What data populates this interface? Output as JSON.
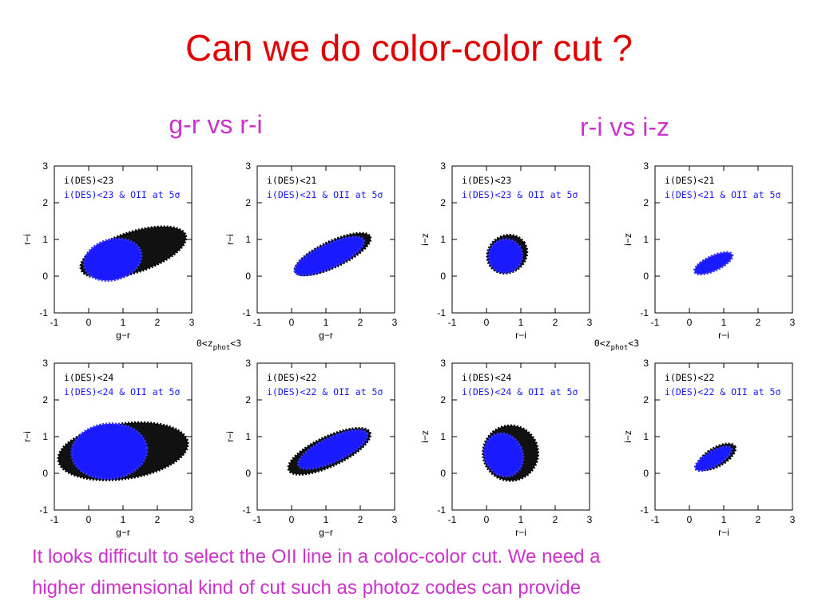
{
  "title": "Can we do color-color cut ?",
  "subtitles": [
    "g-r vs r-i",
    "r-i vs i-z"
  ],
  "redshift_labels": [
    {
      "pre": "0<z",
      "sub": "phot",
      "post": "<3"
    },
    {
      "pre": "0<z",
      "sub": "phot",
      "post": "<3"
    }
  ],
  "panels": [
    {
      "legend": [
        "i(DES)<23",
        "i(DES)<23 & OII at 5σ"
      ],
      "xlabel": "g−r",
      "ylabel": "r−i",
      "xlim": [
        -1,
        3
      ],
      "ylim": [
        -1,
        3
      ],
      "xticks": [
        -1,
        0,
        1,
        2,
        3
      ],
      "yticks": [
        -1,
        0,
        1,
        2,
        3
      ]
    },
    {
      "legend": [
        "i(DES)<21",
        "i(DES)<21 & OII at 5σ"
      ],
      "xlabel": "g−r",
      "ylabel": "r−i",
      "xlim": [
        -1,
        3
      ],
      "ylim": [
        -1,
        3
      ],
      "xticks": [
        -1,
        0,
        1,
        2,
        3
      ],
      "yticks": [
        -1,
        0,
        1,
        2,
        3
      ]
    },
    {
      "legend": [
        "i(DES)<23",
        "i(DES)<23 & OII at 5σ"
      ],
      "xlabel": "r−i",
      "ylabel": "i−z",
      "xlim": [
        -1,
        3
      ],
      "ylim": [
        -1,
        3
      ],
      "xticks": [
        -1,
        0,
        1,
        2,
        3
      ],
      "yticks": [
        -1,
        0,
        1,
        2,
        3
      ]
    },
    {
      "legend": [
        "i(DES)<21",
        "i(DES)<21 & OII at 5σ"
      ],
      "xlabel": "r−i",
      "ylabel": "i−z",
      "xlim": [
        -1,
        3
      ],
      "ylim": [
        -1,
        3
      ],
      "xticks": [
        -1,
        0,
        1,
        2,
        3
      ],
      "yticks": [
        -1,
        0,
        1,
        2,
        3
      ]
    },
    {
      "legend": [
        "i(DES)<24",
        "i(DES)<24 & OII at 5σ"
      ],
      "xlabel": "g−r",
      "ylabel": "r−i",
      "xlim": [
        -1,
        3
      ],
      "ylim": [
        -1,
        3
      ],
      "xticks": [
        -1,
        0,
        1,
        2,
        3
      ],
      "yticks": [
        -1,
        0,
        1,
        2,
        3
      ]
    },
    {
      "legend": [
        "i(DES)<22",
        "i(DES)<22 & OII at 5σ"
      ],
      "xlabel": "g−r",
      "ylabel": "r−i",
      "xlim": [
        -1,
        3
      ],
      "ylim": [
        -1,
        3
      ],
      "xticks": [
        -1,
        0,
        1,
        2,
        3
      ],
      "yticks": [
        -1,
        0,
        1,
        2,
        3
      ]
    },
    {
      "legend": [
        "i(DES)<24",
        "i(DES)<24 & OII at 5σ"
      ],
      "xlabel": "r−i",
      "ylabel": "i−z",
      "xlim": [
        -1,
        3
      ],
      "ylim": [
        -1,
        3
      ],
      "xticks": [
        -1,
        0,
        1,
        2,
        3
      ],
      "yticks": [
        -1,
        0,
        1,
        2,
        3
      ]
    },
    {
      "legend": [
        "i(DES)<22",
        "i(DES)<22 & OII at 5σ"
      ],
      "xlabel": "r−i",
      "ylabel": "i−z",
      "xlim": [
        -1,
        3
      ],
      "ylim": [
        -1,
        3
      ],
      "xticks": [
        -1,
        0,
        1,
        2,
        3
      ],
      "yticks": [
        -1,
        0,
        1,
        2,
        3
      ]
    }
  ],
  "footer": [
    "It looks difficult to select the OII line in a coloc-color cut. We need a",
    "higher dimensional kind of cut such as photoz codes can provide"
  ]
}
